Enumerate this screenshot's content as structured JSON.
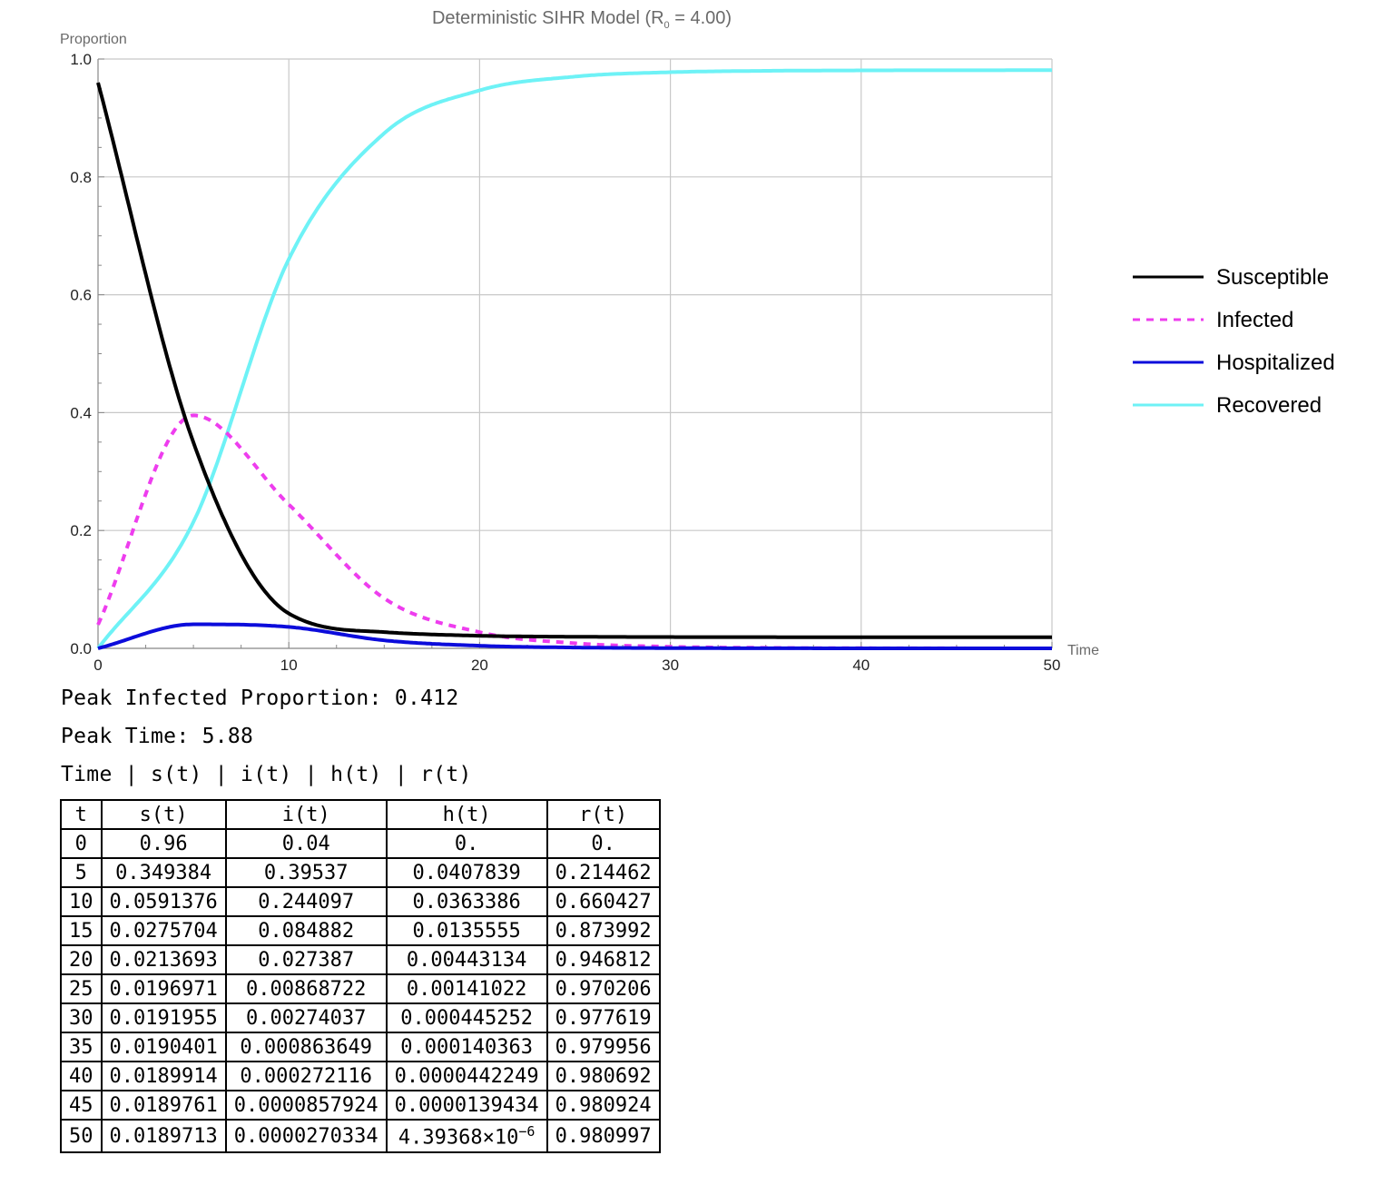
{
  "chart_data": {
    "type": "line",
    "title": "Deterministic SIHR Model (R₀ = 4.00)",
    "title_parts": {
      "before": "Deterministic SIHR Model (R",
      "sub": "0",
      "after": " = 4.00)"
    },
    "xlabel": "Time",
    "ylabel": "Proportion",
    "xlim": [
      0,
      50
    ],
    "ylim": [
      0,
      1
    ],
    "xticks": [
      "0",
      "10",
      "20",
      "30",
      "40",
      "50"
    ],
    "yticks": [
      "0.0",
      "0.2",
      "0.4",
      "0.6",
      "0.8",
      "1.0"
    ],
    "grid": true,
    "legend_position": "right",
    "x": [
      0,
      5,
      10,
      15,
      20,
      25,
      30,
      35,
      40,
      45,
      50
    ],
    "series": [
      {
        "name": "Susceptible",
        "color": "#000000",
        "dashed": false,
        "values": [
          0.96,
          0.349384,
          0.0591376,
          0.0275704,
          0.0213693,
          0.0196971,
          0.0191955,
          0.0190401,
          0.0189914,
          0.0189761,
          0.0189713
        ]
      },
      {
        "name": "Infected",
        "color": "#ee3dee",
        "dashed": true,
        "values": [
          0.04,
          0.39537,
          0.244097,
          0.084882,
          0.027387,
          0.00868722,
          0.00274037,
          0.000863649,
          0.000272116,
          8.57924e-05,
          2.70334e-05
        ]
      },
      {
        "name": "Hospitalized",
        "color": "#0c0cdb",
        "dashed": false,
        "values": [
          0,
          0.0407839,
          0.0363386,
          0.0135555,
          0.00443134,
          0.00141022,
          0.000445252,
          0.000140363,
          4.42249e-05,
          1.39434e-05,
          4.39368e-06
        ]
      },
      {
        "name": "Recovered",
        "color": "#6ef2f6",
        "dashed": false,
        "values": [
          0,
          0.214462,
          0.660427,
          0.873992,
          0.946812,
          0.970206,
          0.977619,
          0.979956,
          0.980692,
          0.980924,
          0.980997
        ]
      }
    ]
  },
  "output": {
    "peak_infected": "Peak Infected Proportion: 0.412",
    "peak_time": "Peak Time: 5.88",
    "table_caption": "Time | s(t) | i(t) | h(t) | r(t)"
  },
  "table": {
    "headers": [
      "t",
      "s(t)",
      "i(t)",
      "h(t)",
      "r(t)"
    ],
    "rows": [
      [
        "0",
        "0.96",
        "0.04",
        "0.",
        "0."
      ],
      [
        "5",
        "0.349384",
        "0.39537",
        "0.0407839",
        "0.214462"
      ],
      [
        "10",
        "0.0591376",
        "0.244097",
        "0.0363386",
        "0.660427"
      ],
      [
        "15",
        "0.0275704",
        "0.084882",
        "0.0135555",
        "0.873992"
      ],
      [
        "20",
        "0.0213693",
        "0.027387",
        "0.00443134",
        "0.946812"
      ],
      [
        "25",
        "0.0196971",
        "0.00868722",
        "0.00141022",
        "0.970206"
      ],
      [
        "30",
        "0.0191955",
        "0.00274037",
        "0.000445252",
        "0.977619"
      ],
      [
        "35",
        "0.0190401",
        "0.000863649",
        "0.000140363",
        "0.979956"
      ],
      [
        "40",
        "0.0189914",
        "0.000272116",
        "0.0000442249",
        "0.980692"
      ],
      [
        "45",
        "0.0189761",
        "0.0000857924",
        "0.0000139434",
        "0.980924"
      ],
      [
        "50",
        "0.0189713",
        "0.0000270334",
        "4.39368×10",
        "0.980997"
      ]
    ],
    "last_exponent": "−6"
  }
}
